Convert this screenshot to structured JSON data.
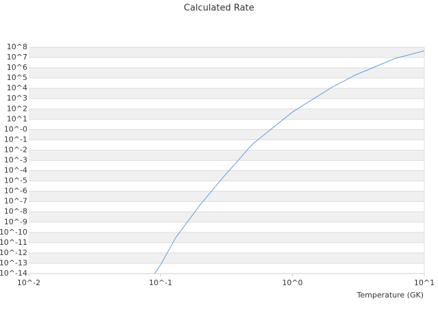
{
  "chart_data": {
    "type": "line",
    "title": "Calculated Rate",
    "x_label": "Temperature (GK)",
    "xscale": "log",
    "yscale": "log",
    "grid": true,
    "xlim": [
      0.01,
      10
    ],
    "xticks": [
      {
        "value": 0.01,
        "label": "10^-2"
      },
      {
        "value": 0.1,
        "label": "10^-1"
      },
      {
        "value": 1,
        "label": "10^0"
      },
      {
        "value": 10,
        "label": "10^1"
      }
    ],
    "ylim": [
      1e-14,
      100000000.0
    ],
    "yticks": [
      {
        "value": 100000000.0,
        "label": "10^8"
      },
      {
        "value": 10000000.0,
        "label": "10^7"
      },
      {
        "value": 1000000.0,
        "label": "10^6"
      },
      {
        "value": 100000.0,
        "label": "10^5"
      },
      {
        "value": 10000.0,
        "label": "10^4"
      },
      {
        "value": 1000.0,
        "label": "10^3"
      },
      {
        "value": 100.0,
        "label": "10^2"
      },
      {
        "value": 10.0,
        "label": "10^1"
      },
      {
        "value": 1,
        "label": "10^-0"
      },
      {
        "value": 0.1,
        "label": "10^-1"
      },
      {
        "value": 0.01,
        "label": "10^-2"
      },
      {
        "value": 0.001,
        "label": "10^-3"
      },
      {
        "value": 0.0001,
        "label": "10^-4"
      },
      {
        "value": 1e-05,
        "label": "10^-5"
      },
      {
        "value": 1e-06,
        "label": "10^-6"
      },
      {
        "value": 1e-07,
        "label": "10^-7"
      },
      {
        "value": 1e-08,
        "label": "10^-8"
      },
      {
        "value": 1e-09,
        "label": "10^-9"
      },
      {
        "value": 1e-10,
        "label": "10^-10"
      },
      {
        "value": 1e-11,
        "label": "10^-11"
      },
      {
        "value": 1e-12,
        "label": "10^-12"
      },
      {
        "value": 1e-13,
        "label": "10^-13"
      },
      {
        "value": 1e-14,
        "label": "10^-14"
      }
    ],
    "x": [
      0.09,
      0.1,
      0.13,
      0.2,
      0.3,
      0.5,
      1,
      2,
      3,
      6,
      10
    ],
    "series": [
      {
        "color": "#5a9fe6",
        "values": [
          1e-14,
          7e-14,
          3e-11,
          5e-08,
          2.5e-05,
          0.04,
          50,
          13000.0,
          200000.0,
          8000000.0,
          45000000.0
        ]
      }
    ]
  }
}
